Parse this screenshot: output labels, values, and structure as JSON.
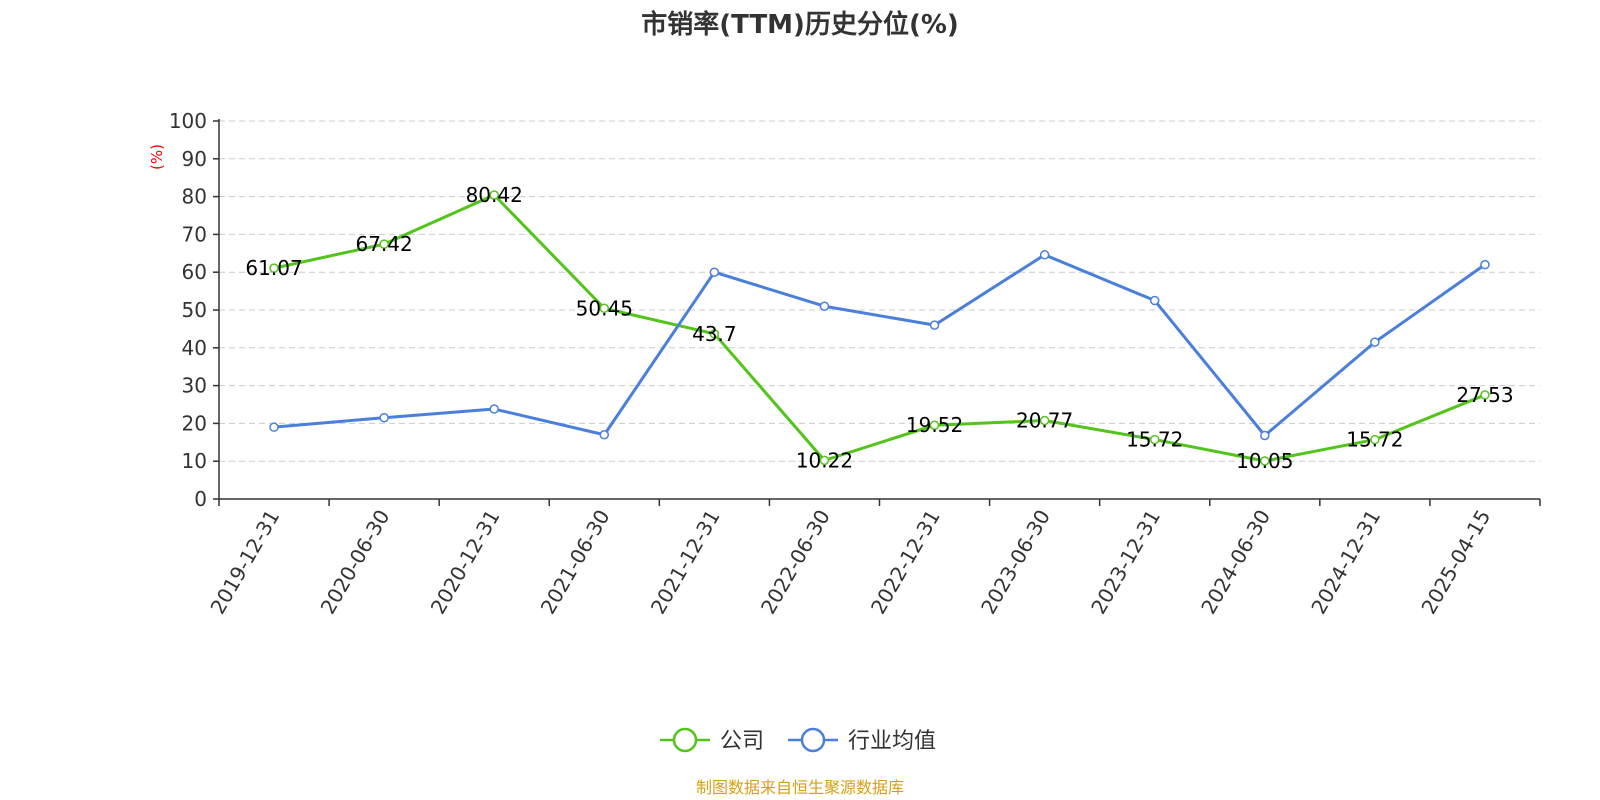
{
  "chart_data": {
    "type": "line",
    "title": "市销率(TTM)历史分位(%)",
    "ylabel": "(%)",
    "ylim": [
      0,
      100
    ],
    "yticks": [
      0,
      10,
      20,
      30,
      40,
      50,
      60,
      70,
      80,
      90,
      100
    ],
    "categories": [
      "2019-12-31",
      "2020-06-30",
      "2020-12-31",
      "2021-06-30",
      "2021-12-31",
      "2022-06-30",
      "2022-12-31",
      "2023-06-30",
      "2023-12-31",
      "2024-06-30",
      "2024-12-31",
      "2025-04-15"
    ],
    "series": [
      {
        "name": "公司",
        "color": "#52c41a",
        "values": [
          61.07,
          67.42,
          80.42,
          50.45,
          43.7,
          10.22,
          19.52,
          20.77,
          15.72,
          10.05,
          15.72,
          27.53
        ],
        "labels": [
          "61.07",
          "67.42",
          "80.42",
          "50.45",
          "43.7",
          "10.22",
          "19.52",
          "20.77",
          "15.72",
          "10.05",
          "15.72",
          "27.53"
        ]
      },
      {
        "name": "行业均值",
        "color": "#4a7fdc",
        "values": [
          19,
          21.5,
          23.8,
          17,
          60,
          51,
          46,
          64.6,
          52.5,
          16.8,
          41.5,
          62
        ]
      }
    ],
    "grid": true,
    "legend_position": "bottom",
    "source": "制图数据来自恒生聚源数据库",
    "source_color": "#d4a017"
  }
}
